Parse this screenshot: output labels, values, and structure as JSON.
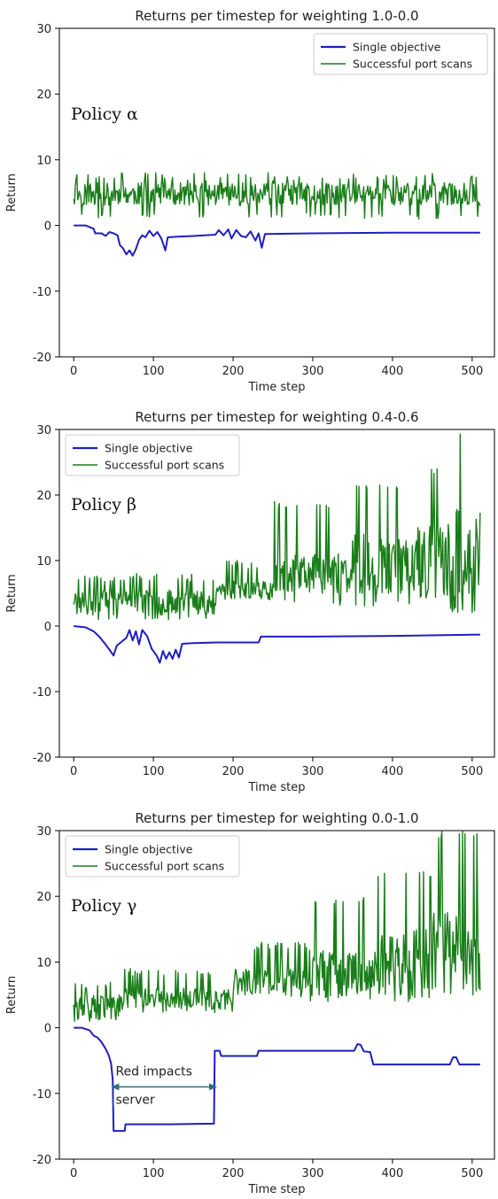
{
  "colors": {
    "single": "#1f1fbf",
    "scans": "#1a7d1a",
    "arrow": "#2f6f7a",
    "axis": "#000000"
  },
  "chart_data": [
    {
      "type": "line",
      "title": "Returns per timestep for weighting 1.0-0.0",
      "xlabel": "Time step",
      "ylabel": "Return",
      "xlim": [
        -18,
        528
      ],
      "ylim": [
        -20,
        30
      ],
      "xticks": [
        0,
        100,
        200,
        300,
        400,
        500
      ],
      "yticks": [
        -20,
        -10,
        0,
        10,
        20,
        30
      ],
      "grid": false,
      "legend_position": "top-right",
      "policy_label": "Policy α",
      "series": [
        {
          "name": "Single objective",
          "color": "#1f1fbf",
          "points": [
            [
              0,
              0
            ],
            [
              15,
              0
            ],
            [
              25,
              -0.5
            ],
            [
              27,
              -1.2
            ],
            [
              35,
              -1.2
            ],
            [
              40,
              -1.6
            ],
            [
              45,
              -1.0
            ],
            [
              50,
              -1.2
            ],
            [
              55,
              -1.5
            ],
            [
              58,
              -3
            ],
            [
              62,
              -3.5
            ],
            [
              66,
              -4.4
            ],
            [
              70,
              -3.8
            ],
            [
              74,
              -4.6
            ],
            [
              78,
              -3.6
            ],
            [
              82,
              -2.2
            ],
            [
              86,
              -1.5
            ],
            [
              90,
              -1.8
            ],
            [
              95,
              -0.8
            ],
            [
              100,
              -1.6
            ],
            [
              105,
              -1.0
            ],
            [
              110,
              -2.0
            ],
            [
              115,
              -3.8
            ],
            [
              118,
              -1.8
            ],
            [
              130,
              -1.7
            ],
            [
              150,
              -1.6
            ],
            [
              178,
              -1.4
            ],
            [
              182,
              -0.7
            ],
            [
              188,
              -1.5
            ],
            [
              194,
              -0.6
            ],
            [
              198,
              -2.0
            ],
            [
              204,
              -0.7
            ],
            [
              210,
              -1.6
            ],
            [
              216,
              -1.8
            ],
            [
              222,
              -0.9
            ],
            [
              228,
              -2.3
            ],
            [
              232,
              -1.2
            ],
            [
              236,
              -3.4
            ],
            [
              240,
              -1.3
            ],
            [
              300,
              -1.2
            ],
            [
              400,
              -1.1
            ],
            [
              510,
              -1.1
            ]
          ]
        },
        {
          "name": "Successful port scans",
          "color": "#1a7d1a",
          "gen": {
            "seed": 11,
            "n": 511,
            "segments": [
              [
                0,
                3,
                6.5,
                1,
                8
              ]
            ]
          }
        }
      ]
    },
    {
      "type": "line",
      "title": "Returns per timestep for weighting 0.4-0.6",
      "xlabel": "Time step",
      "ylabel": "Return",
      "xlim": [
        -18,
        528
      ],
      "ylim": [
        -20,
        30
      ],
      "xticks": [
        0,
        100,
        200,
        300,
        400,
        500
      ],
      "yticks": [
        -20,
        -10,
        0,
        10,
        20,
        30
      ],
      "grid": false,
      "legend_position": "top-left",
      "policy_label": "Policy β",
      "series": [
        {
          "name": "Single objective",
          "color": "#1f1fbf",
          "points": [
            [
              0,
              0
            ],
            [
              15,
              -0.2
            ],
            [
              25,
              -0.8
            ],
            [
              32,
              -1.6
            ],
            [
              40,
              -2.8
            ],
            [
              46,
              -3.8
            ],
            [
              50,
              -4.5
            ],
            [
              54,
              -3.0
            ],
            [
              60,
              -2.4
            ],
            [
              66,
              -1.8
            ],
            [
              70,
              -0.6
            ],
            [
              74,
              -2.2
            ],
            [
              78,
              -0.8
            ],
            [
              82,
              -2.8
            ],
            [
              86,
              -0.6
            ],
            [
              92,
              -1.5
            ],
            [
              98,
              -3.5
            ],
            [
              104,
              -4.5
            ],
            [
              108,
              -5.6
            ],
            [
              112,
              -3.8
            ],
            [
              116,
              -5.0
            ],
            [
              120,
              -4.0
            ],
            [
              124,
              -5.0
            ],
            [
              128,
              -3.6
            ],
            [
              132,
              -4.8
            ],
            [
              136,
              -2.7
            ],
            [
              150,
              -2.6
            ],
            [
              180,
              -2.5
            ],
            [
              232,
              -2.5
            ],
            [
              235,
              -1.6
            ],
            [
              300,
              -1.6
            ],
            [
              400,
              -1.5
            ],
            [
              510,
              -1.3
            ]
          ]
        },
        {
          "name": "Successful port scans",
          "color": "#1a7d1a",
          "gen": {
            "seed": 23,
            "n": 511,
            "segments": [
              [
                0,
                2,
                5.5,
                1,
                8
              ],
              [
                180,
                4,
                7,
                4,
                10
              ],
              [
                250,
                5,
                11,
                3,
                19
              ],
              [
                350,
                5,
                14,
                3,
                22
              ],
              [
                430,
                5,
                16,
                4,
                24
              ],
              [
                470,
                4,
                18,
                2,
                30
              ]
            ]
          }
        }
      ]
    },
    {
      "type": "line",
      "title": "Returns per timestep for weighting 0.0-1.0",
      "xlabel": "Time step",
      "ylabel": "Return",
      "xlim": [
        -18,
        528
      ],
      "ylim": [
        -20,
        30
      ],
      "xticks": [
        0,
        100,
        200,
        300,
        400,
        500
      ],
      "yticks": [
        -20,
        -10,
        0,
        10,
        20,
        30
      ],
      "grid": false,
      "legend_position": "top-left",
      "policy_label": "Policy γ",
      "annotation": {
        "text_lines": [
          "Red impacts",
          "server"
        ],
        "arrow_from": 47,
        "arrow_to": 180,
        "arrow_y": -9
      },
      "series": [
        {
          "name": "Single objective",
          "color": "#1f1fbf",
          "points": [
            [
              0,
              0
            ],
            [
              10,
              0
            ],
            [
              15,
              -0.2
            ],
            [
              20,
              -0.4
            ],
            [
              25,
              -1.2
            ],
            [
              30,
              -1.5
            ],
            [
              35,
              -2.2
            ],
            [
              40,
              -3.2
            ],
            [
              44,
              -4.2
            ],
            [
              47,
              -5.5
            ],
            [
              49,
              -8
            ],
            [
              50,
              -15.7
            ],
            [
              55,
              -15.7
            ],
            [
              60,
              -15.7
            ],
            [
              64,
              -15.7
            ],
            [
              65,
              -14.7
            ],
            [
              120,
              -14.7
            ],
            [
              176,
              -14.6
            ],
            [
              177,
              -3.5
            ],
            [
              183,
              -3.5
            ],
            [
              185,
              -4.3
            ],
            [
              230,
              -4.3
            ],
            [
              232,
              -3.5
            ],
            [
              300,
              -3.5
            ],
            [
              352,
              -3.5
            ],
            [
              356,
              -2.5
            ],
            [
              360,
              -2.6
            ],
            [
              364,
              -3.6
            ],
            [
              372,
              -3.7
            ],
            [
              376,
              -5.6
            ],
            [
              400,
              -5.6
            ],
            [
              472,
              -5.6
            ],
            [
              476,
              -4.5
            ],
            [
              480,
              -4.5
            ],
            [
              484,
              -5.6
            ],
            [
              510,
              -5.6
            ]
          ]
        },
        {
          "name": "Successful port scans",
          "color": "#1a7d1a",
          "gen": {
            "seed": 37,
            "n": 511,
            "segments": [
              [
                0,
                1,
                5,
                1,
                7
              ],
              [
                60,
                3,
                6,
                2,
                9
              ],
              [
                200,
                5,
                9,
                4,
                13
              ],
              [
                300,
                5,
                12,
                4,
                20
              ],
              [
                380,
                5,
                15,
                4,
                24
              ],
              [
                450,
                5,
                18,
                5,
                30
              ]
            ]
          }
        }
      ]
    }
  ]
}
